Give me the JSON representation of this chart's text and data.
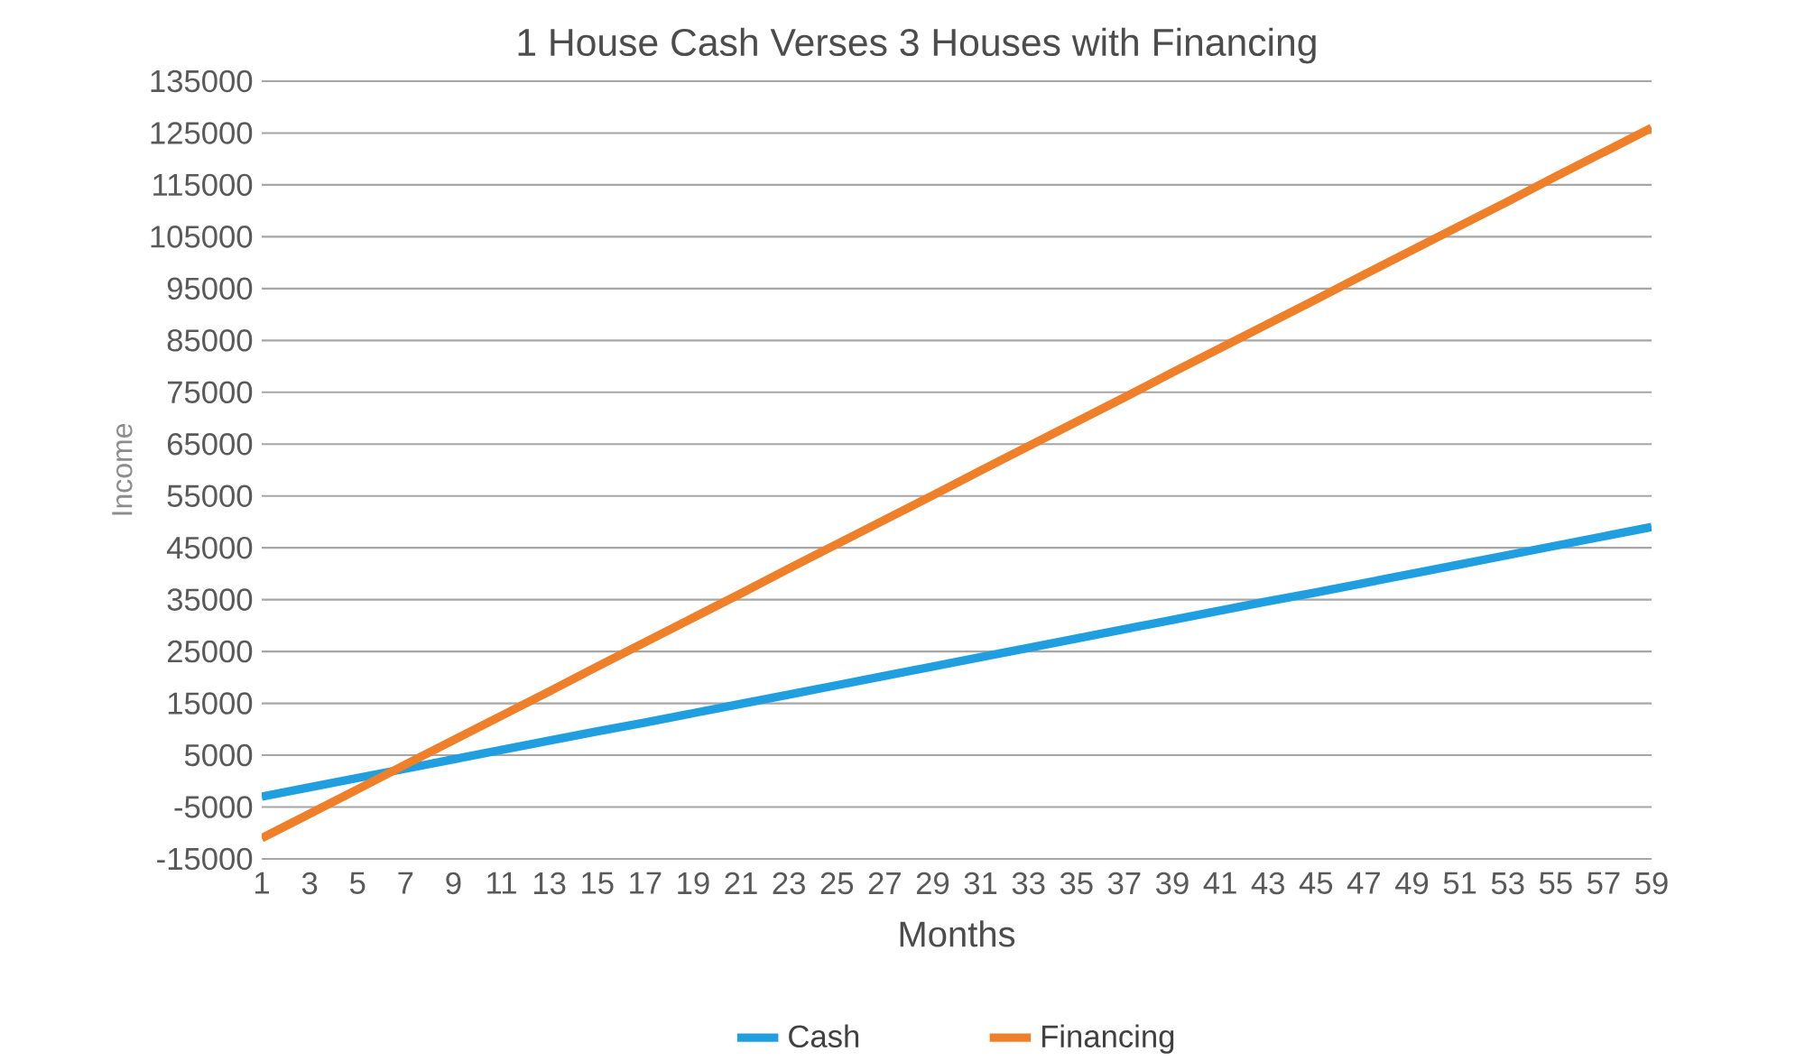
{
  "chart_data": {
    "type": "line",
    "title": "1 House Cash Verses 3 Houses with Financing",
    "xlabel": "Months",
    "ylabel": "Income",
    "categories": [
      "1",
      "3",
      "5",
      "7",
      "9",
      "11",
      "13",
      "15",
      "17",
      "19",
      "21",
      "23",
      "25",
      "27",
      "29",
      "31",
      "33",
      "35",
      "37",
      "39",
      "41",
      "43",
      "45",
      "47",
      "49",
      "51",
      "53",
      "55",
      "57",
      "59"
    ],
    "series": [
      {
        "name": "Cash",
        "color": "#1f9fe0",
        "values": [
          -3000,
          -1200,
          600,
          2400,
          4200,
          6000,
          7800,
          9600,
          11300,
          13100,
          14900,
          16700,
          18500,
          20300,
          22100,
          23900,
          25700,
          27500,
          29300,
          31100,
          32900,
          34700,
          36400,
          38200,
          40000,
          41800,
          43600,
          45400,
          47200,
          49000
        ]
      },
      {
        "name": "Financing",
        "color": "#f07f2a",
        "values": [
          -11000,
          -6300,
          -1600,
          3200,
          7900,
          12600,
          17300,
          22100,
          26800,
          31500,
          36200,
          41000,
          45700,
          50400,
          55100,
          59900,
          64600,
          69300,
          74000,
          78800,
          83500,
          88200,
          92900,
          97700,
          102400,
          107100,
          111800,
          116600,
          121300,
          126000
        ]
      }
    ],
    "ylim": [
      -15000,
      135000
    ],
    "yticks": [
      -15000,
      -5000,
      5000,
      15000,
      25000,
      35000,
      45000,
      55000,
      65000,
      75000,
      85000,
      95000,
      105000,
      115000,
      125000,
      135000
    ],
    "grid": "y",
    "legend": "bottom",
    "marker": "none",
    "line_style": "solid"
  }
}
